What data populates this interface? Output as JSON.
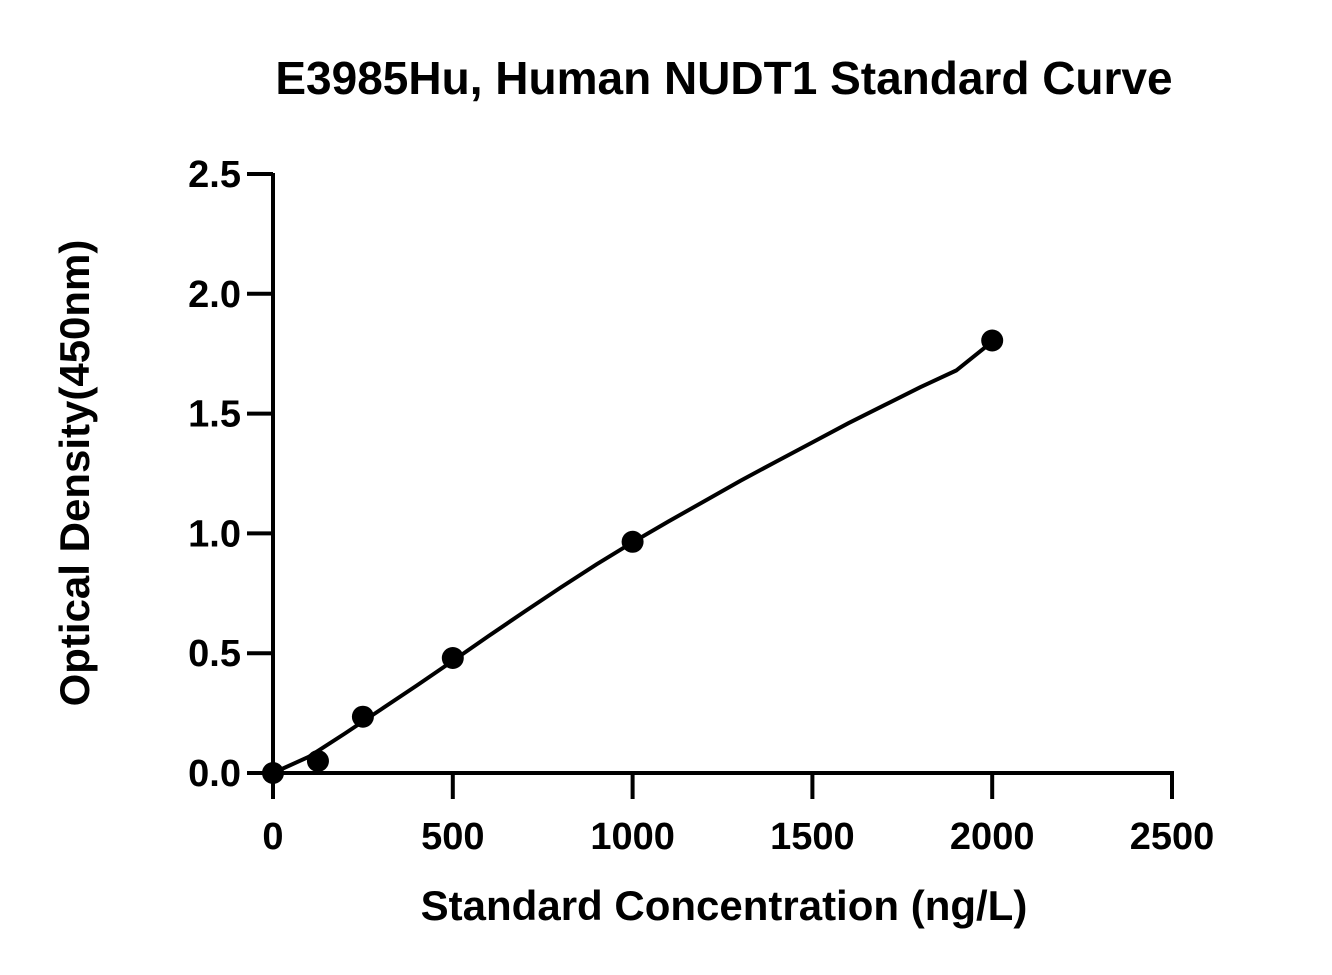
{
  "chart_data": {
    "type": "scatter",
    "title": "E3985Hu, Human NUDT1 Standard Curve",
    "xlabel": "Standard Concentration (ng/L)",
    "ylabel": "Optical Density(450nm)",
    "xlim": [
      0,
      2500
    ],
    "ylim": [
      0,
      2.5
    ],
    "x_ticks": [
      "0",
      "500",
      "1000",
      "1500",
      "2000",
      "2500"
    ],
    "y_ticks": [
      "0.0",
      "0.5",
      "1.0",
      "1.5",
      "2.0",
      "2.5"
    ],
    "grid": false,
    "legend": "none",
    "marker_color": "#000000",
    "line_color": "#000000",
    "series": [
      {
        "points": [
          {
            "x": 0,
            "y": 0.0
          },
          {
            "x": 125,
            "y": 0.05
          },
          {
            "x": 250,
            "y": 0.235
          },
          {
            "x": 500,
            "y": 0.48
          },
          {
            "x": 1000,
            "y": 0.965
          },
          {
            "x": 2000,
            "y": 1.805
          }
        ]
      }
    ],
    "fit_curve": {
      "x": [
        0,
        100,
        200,
        300,
        400,
        500,
        600,
        700,
        800,
        900,
        1000,
        1100,
        1200,
        1300,
        1400,
        1500,
        1600,
        1700,
        1800,
        1900,
        2000
      ],
      "y": [
        0.0,
        0.068,
        0.165,
        0.265,
        0.365,
        0.468,
        0.572,
        0.674,
        0.774,
        0.871,
        0.963,
        1.05,
        1.135,
        1.22,
        1.3,
        1.38,
        1.46,
        1.535,
        1.61,
        1.68,
        1.8
      ]
    }
  }
}
